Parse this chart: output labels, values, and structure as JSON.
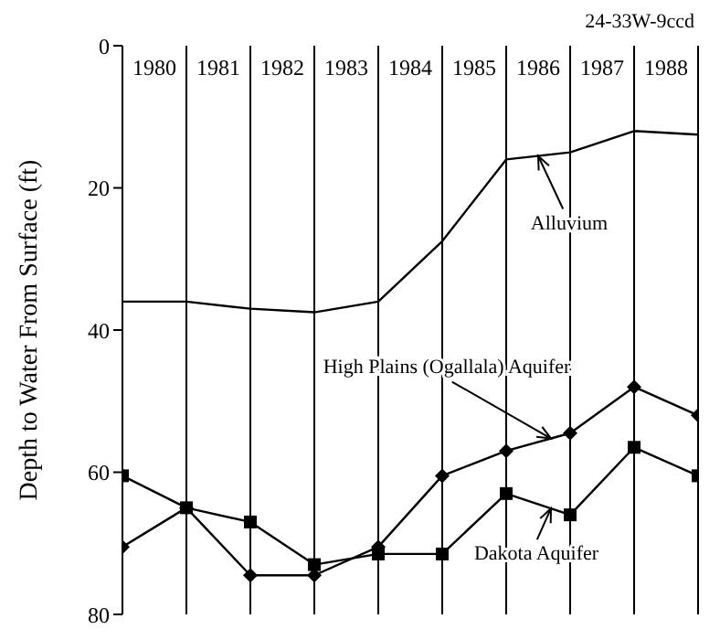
{
  "chart_data": {
    "type": "line",
    "title": "24-33W-9ccd",
    "ylabel": "Depth to Water From Surface (ft)",
    "x": [
      1980,
      1981,
      1982,
      1983,
      1984,
      1985,
      1986,
      1987,
      1988,
      1989
    ],
    "series": [
      {
        "name": "Alluvium",
        "color": "#000000",
        "marker": "none",
        "values": [
          36,
          36,
          37,
          37.5,
          36,
          27.5,
          16,
          15,
          12,
          12.5
        ]
      },
      {
        "name": "High Plains (Ogallala) Aquifer",
        "color": "#000000",
        "marker": "diamond",
        "values": [
          70.5,
          65,
          74.5,
          74.5,
          70.5,
          60.5,
          57,
          54.5,
          48,
          52
        ]
      },
      {
        "name": "Dakota Aquifer",
        "color": "#000000",
        "marker": "square",
        "values": [
          60.5,
          65,
          67,
          73,
          71.5,
          71.5,
          63,
          66,
          56.5,
          60.5
        ]
      }
    ],
    "xlim": [
      1980,
      1989
    ],
    "xticks": [
      {
        "value": 1980,
        "label": null
      },
      {
        "value": 1981,
        "label": null
      },
      {
        "value": 1982,
        "label": null
      },
      {
        "value": 1983,
        "label": null
      },
      {
        "value": 1984,
        "label": null
      },
      {
        "value": 1985,
        "label": null
      },
      {
        "value": 1986,
        "label": null
      },
      {
        "value": 1987,
        "label": null
      },
      {
        "value": 1988,
        "label": null
      },
      {
        "value": 1989,
        "label": null
      },
      {
        "value": 1980.5,
        "label": "1980"
      },
      {
        "value": 1981.5,
        "label": "1981"
      },
      {
        "value": 1982.5,
        "label": "1982"
      },
      {
        "value": 1983.5,
        "label": "1983"
      },
      {
        "value": 1984.5,
        "label": "1984"
      },
      {
        "value": 1985.5,
        "label": "1985"
      },
      {
        "value": 1986.5,
        "label": "1986"
      },
      {
        "value": 1987.5,
        "label": "1987"
      },
      {
        "value": 1988.5,
        "label": "1988"
      }
    ],
    "ylim": [
      80,
      0
    ],
    "yticks": [
      0,
      20,
      40,
      60,
      80
    ],
    "grid": "x",
    "line_style": "solid"
  }
}
